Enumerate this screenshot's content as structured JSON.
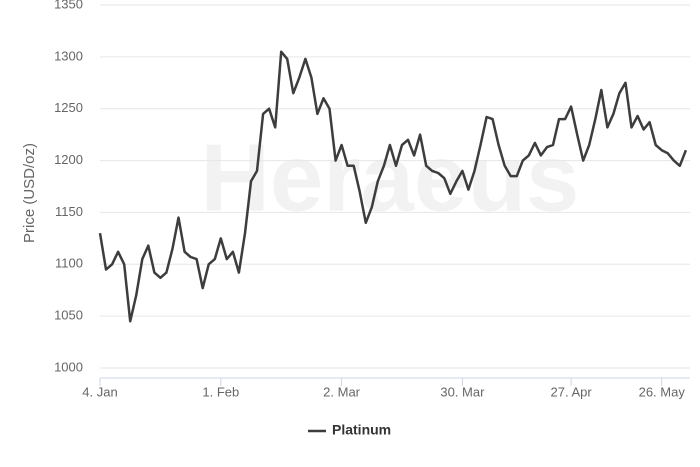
{
  "chart_data": {
    "type": "line",
    "watermark": "Heraeus",
    "y_label": "Price (USD/oz)",
    "categories": [
      "4. Jan",
      null,
      null,
      null,
      null,
      null,
      null,
      null,
      null,
      null,
      null,
      null,
      null,
      null,
      null,
      null,
      null,
      null,
      null,
      null,
      "1. Feb",
      null,
      null,
      null,
      null,
      null,
      null,
      null,
      null,
      null,
      null,
      null,
      null,
      null,
      null,
      null,
      null,
      null,
      null,
      null,
      "2. Mar",
      null,
      null,
      null,
      null,
      null,
      null,
      null,
      null,
      null,
      null,
      null,
      null,
      null,
      null,
      null,
      null,
      null,
      null,
      null,
      "30. Mar",
      null,
      null,
      null,
      null,
      null,
      null,
      null,
      null,
      null,
      null,
      null,
      null,
      null,
      null,
      null,
      null,
      null,
      "27. Apr",
      null,
      null,
      null,
      null,
      null,
      null,
      null,
      null,
      null,
      null,
      null,
      null,
      null,
      null,
      "26. May",
      null,
      null,
      null,
      null
    ],
    "series": [
      {
        "name": "Platinum",
        "color": "#3d3d3d",
        "values": [
          1130,
          1095,
          1100,
          1112,
          1100,
          1045,
          1070,
          1105,
          1118,
          1092,
          1087,
          1092,
          1115,
          1145,
          1112,
          1107,
          1105,
          1077,
          1100,
          1105,
          1125,
          1105,
          1112,
          1092,
          1130,
          1180,
          1190,
          1245,
          1250,
          1232,
          1305,
          1298,
          1265,
          1280,
          1298,
          1280,
          1245,
          1260,
          1250,
          1200,
          1215,
          1195,
          1195,
          1170,
          1140,
          1155,
          1180,
          1195,
          1215,
          1195,
          1215,
          1220,
          1205,
          1225,
          1195,
          1190,
          1188,
          1183,
          1168,
          1180,
          1190,
          1172,
          1190,
          1215,
          1242,
          1240,
          1215,
          1195,
          1185,
          1185,
          1200,
          1205,
          1217,
          1205,
          1213,
          1215,
          1240,
          1240,
          1252,
          1225,
          1200,
          1215,
          1240,
          1268,
          1232,
          1245,
          1265,
          1275,
          1232,
          1243,
          1230,
          1237,
          1215,
          1210,
          1207,
          1200,
          1195,
          1210
        ]
      }
    ],
    "ylim": [
      1000,
      1350
    ],
    "yticks": [
      1000,
      1050,
      1100,
      1150,
      1200,
      1250,
      1300,
      1350
    ],
    "grid": true,
    "legend": "bottom"
  }
}
